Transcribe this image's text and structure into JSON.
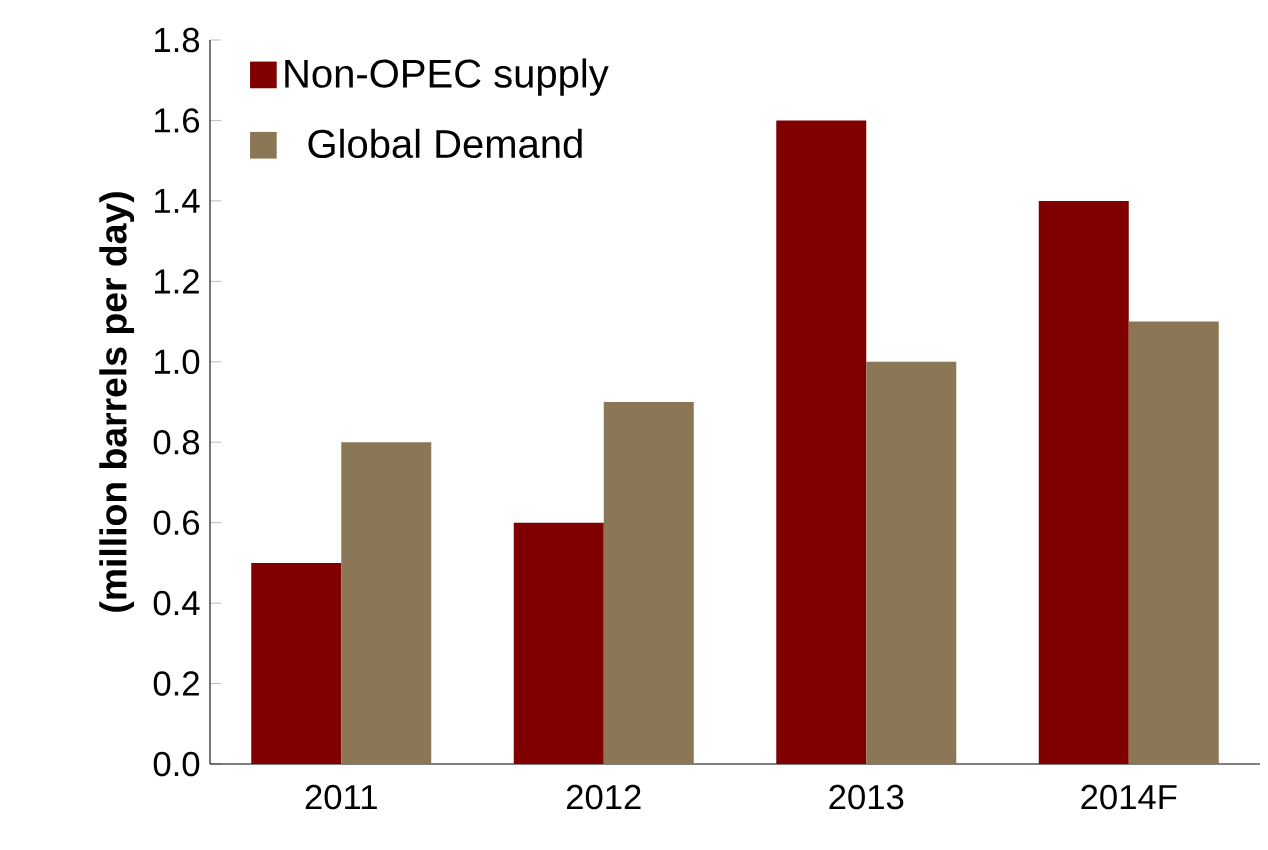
{
  "chart_data": {
    "type": "bar",
    "ylabel": "(million barrels per day)",
    "categories": [
      "2011",
      "2012",
      "2013",
      "2014F"
    ],
    "series": [
      {
        "name": "Non-OPEC supply",
        "color": "#800000",
        "values": [
          0.5,
          0.6,
          1.6,
          1.4
        ]
      },
      {
        "name": "Global Demand",
        "color": "#8b7755",
        "values": [
          0.8,
          0.9,
          1.0,
          1.1
        ]
      }
    ],
    "ylim": [
      0,
      1.8
    ],
    "yticks": [
      {
        "value": 0,
        "label": "0.0"
      },
      {
        "value": 0.2,
        "label": "0.2"
      },
      {
        "value": 0.4,
        "label": "0.4"
      },
      {
        "value": 0.6,
        "label": "0.6"
      },
      {
        "value": 0.8,
        "label": "0.8"
      },
      {
        "value": 1.0,
        "label": "1.0"
      },
      {
        "value": 1.2,
        "label": "1.2"
      },
      {
        "value": 1.4,
        "label": "1.4"
      },
      {
        "value": 1.6,
        "label": "1.6"
      },
      {
        "value": 1.8,
        "label": "1.8"
      }
    ],
    "legend": "top left",
    "grid": false
  }
}
